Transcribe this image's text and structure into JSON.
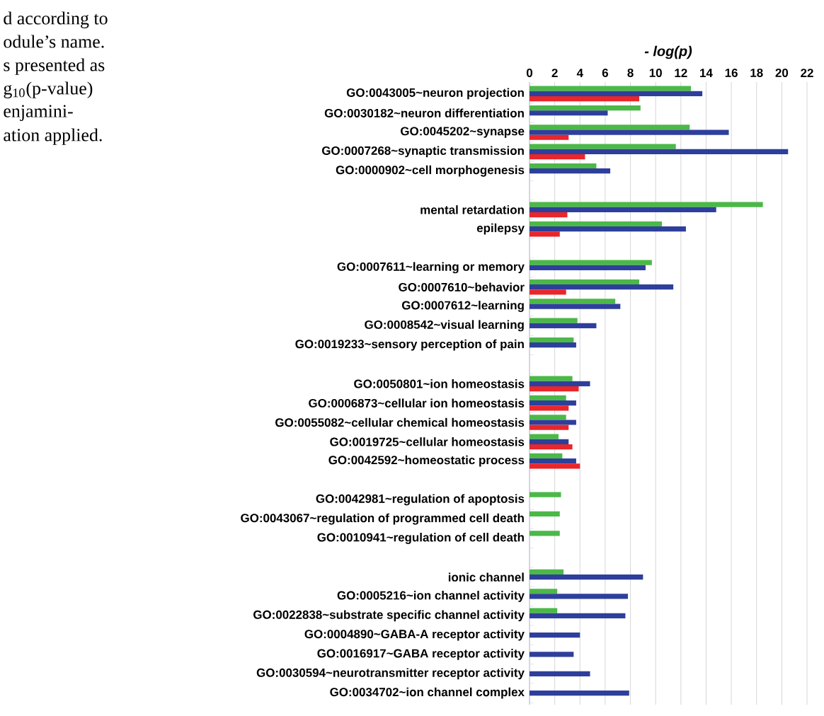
{
  "chart_data": {
    "type": "bar",
    "orientation": "horizontal",
    "xlabel": "- log(p)",
    "annotations": [
      "d according to",
      "odule’s name.",
      "s presented as",
      "g$_{10}$(p-value)",
      "enjamini-",
      "ation applied."
    ],
    "categories": [
      "GO:0043005~neuron projection",
      "GO:0030182~neuron differentiation",
      "GO:0045202~synapse",
      "GO:0007268~synaptic transmission",
      "GO:0000902~cell morphogenesis",
      null,
      "mental retardation",
      "epilepsy",
      null,
      "GO:0007611~learning or memory",
      "GO:0007610~behavior",
      "GO:0007612~learning",
      "GO:0008542~visual learning",
      "GO:0019233~sensory perception of pain",
      null,
      "GO:0050801~ion homeostasis",
      "GO:0006873~cellular ion homeostasis",
      "GO:0055082~cellular chemical homeostasis",
      "GO:0019725~cellular homeostasis",
      "GO:0042592~homeostatic process",
      null,
      "GO:0042981~regulation of apoptosis",
      "GO:0043067~regulation of programmed cell death",
      "GO:0010941~regulation of cell death",
      null,
      "ionic channel",
      "GO:0005216~ion channel activity",
      "GO:0022838~substrate specific channel activity",
      "GO:0004890~GABA-A receptor activity",
      "GO:0016917~GABA receptor activity",
      "GO:0030594~neurotransmitter receptor activity",
      "GO:0034702~ion channel complex"
    ],
    "series": [
      {
        "color": "#4cb848",
        "values": [
          12.8,
          8.8,
          12.7,
          11.6,
          5.3,
          null,
          18.5,
          10.5,
          null,
          9.7,
          8.7,
          6.8,
          3.8,
          3.5,
          null,
          3.4,
          2.9,
          2.9,
          2.3,
          2.6,
          null,
          2.5,
          2.4,
          2.4,
          null,
          2.7,
          2.2,
          2.2,
          null,
          null,
          null,
          null
        ]
      },
      {
        "color": "#2e3f9b",
        "values": [
          13.7,
          6.2,
          15.8,
          20.5,
          6.4,
          null,
          14.8,
          12.4,
          null,
          9.2,
          11.4,
          7.2,
          5.3,
          3.7,
          null,
          4.8,
          3.7,
          3.7,
          3.1,
          3.7,
          null,
          null,
          null,
          null,
          null,
          9.0,
          7.8,
          7.6,
          4.0,
          3.5,
          4.8,
          7.9
        ]
      },
      {
        "color": "#e8262b",
        "values": [
          8.7,
          null,
          3.1,
          4.4,
          null,
          null,
          3.0,
          2.4,
          null,
          null,
          2.9,
          null,
          null,
          null,
          null,
          3.9,
          3.1,
          3.1,
          3.4,
          4.0,
          null,
          null,
          null,
          null,
          null,
          null,
          null,
          null,
          null,
          null,
          null,
          null
        ]
      }
    ],
    "xlim": [
      0,
      22
    ],
    "xticks": [
      0,
      2,
      4,
      6,
      8,
      10,
      12,
      14,
      16,
      18,
      20,
      22
    ],
    "grid": "x"
  }
}
